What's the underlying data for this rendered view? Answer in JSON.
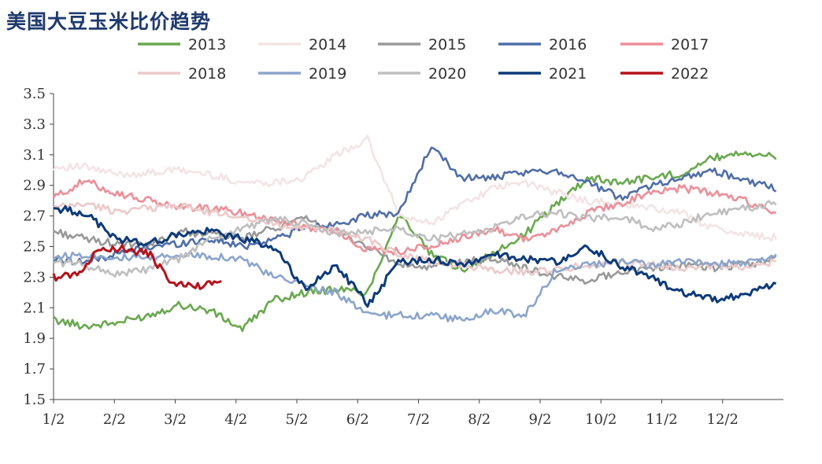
{
  "chart_data": {
    "type": "line",
    "title": "美国大豆玉米比价趋势",
    "xlabel": "",
    "ylabel": "",
    "ylim": [
      1.5,
      3.5
    ],
    "yticks": [
      "1.5",
      "1.7",
      "1.9",
      "2.1",
      "2.3",
      "2.5",
      "2.7",
      "2.9",
      "3.1",
      "3.3",
      "3.5"
    ],
    "x_ticks": [
      "1/2",
      "2/2",
      "3/2",
      "4/2",
      "5/2",
      "6/2",
      "7/2",
      "8/2",
      "9/2",
      "10/2",
      "11/2",
      "12/2"
    ],
    "grid": false,
    "legend_position": "top",
    "series": [
      {
        "name": "2013",
        "color": "#6aa84f",
        "values": [
          2.02,
          1.98,
          2.0,
          2.05,
          2.12,
          2.08,
          1.96,
          2.15,
          2.2,
          2.22,
          2.2,
          2.72,
          2.45,
          2.35,
          2.45,
          2.58,
          2.78,
          2.95,
          2.92,
          2.95,
          2.98,
          3.08,
          3.12,
          3.08
        ]
      },
      {
        "name": "2014",
        "color": "#f4e4e4",
        "values": [
          3.02,
          3.02,
          2.97,
          2.98,
          3.0,
          2.97,
          2.92,
          2.92,
          2.95,
          3.1,
          3.2,
          2.7,
          2.65,
          2.78,
          2.88,
          2.92,
          2.85,
          2.8,
          2.78,
          2.75,
          2.72,
          2.62,
          2.58,
          2.56
        ]
      },
      {
        "name": "2015",
        "color": "#999999",
        "values": [
          2.6,
          2.55,
          2.52,
          2.5,
          2.6,
          2.58,
          2.55,
          2.62,
          2.68,
          2.6,
          2.5,
          2.38,
          2.36,
          2.4,
          2.42,
          2.36,
          2.3,
          2.28,
          2.33,
          2.36,
          2.38,
          2.36,
          2.38,
          2.42
        ]
      },
      {
        "name": "2016",
        "color": "#4f6ea9",
        "values": [
          2.42,
          2.4,
          2.45,
          2.5,
          2.52,
          2.55,
          2.5,
          2.55,
          2.62,
          2.65,
          2.7,
          2.72,
          3.15,
          2.95,
          2.95,
          2.98,
          3.0,
          2.92,
          2.82,
          2.9,
          2.95,
          3.0,
          2.93,
          2.88
        ]
      },
      {
        "name": "2017",
        "color": "#ec8f98",
        "values": [
          2.82,
          2.93,
          2.85,
          2.8,
          2.76,
          2.75,
          2.72,
          2.68,
          2.63,
          2.6,
          2.48,
          2.47,
          2.5,
          2.55,
          2.62,
          2.55,
          2.6,
          2.72,
          2.78,
          2.85,
          2.88,
          2.85,
          2.8,
          2.73
        ]
      },
      {
        "name": "2018",
        "color": "#eccaca",
        "values": [
          2.75,
          2.78,
          2.73,
          2.75,
          2.77,
          2.72,
          2.7,
          2.65,
          2.62,
          2.6,
          2.55,
          2.45,
          2.4,
          2.38,
          2.35,
          2.33,
          2.35,
          2.38,
          2.4,
          2.38,
          2.36,
          2.38,
          2.37,
          2.4
        ]
      },
      {
        "name": "2019",
        "color": "#8ba5cc",
        "values": [
          2.43,
          2.45,
          2.43,
          2.42,
          2.45,
          2.44,
          2.42,
          2.3,
          2.25,
          2.2,
          2.05,
          2.05,
          2.05,
          2.02,
          2.08,
          2.05,
          2.35,
          2.38,
          2.4,
          2.38,
          2.4,
          2.38,
          2.4,
          2.43
        ]
      },
      {
        "name": "2020",
        "color": "#bfbfbf",
        "values": [
          2.4,
          2.38,
          2.32,
          2.35,
          2.42,
          2.55,
          2.62,
          2.68,
          2.65,
          2.58,
          2.6,
          2.62,
          2.55,
          2.58,
          2.62,
          2.7,
          2.72,
          2.68,
          2.7,
          2.62,
          2.65,
          2.72,
          2.75,
          2.78
        ]
      },
      {
        "name": "2021",
        "color": "#0d3a7a",
        "values": [
          2.75,
          2.72,
          2.55,
          2.52,
          2.58,
          2.6,
          2.55,
          2.5,
          2.22,
          2.38,
          2.12,
          2.4,
          2.42,
          2.38,
          2.45,
          2.42,
          2.4,
          2.5,
          2.38,
          2.3,
          2.2,
          2.15,
          2.18,
          2.25
        ]
      },
      {
        "name": "2022",
        "color": "#b5121b",
        "values": [
          2.3,
          2.32,
          2.5,
          2.48,
          2.45,
          2.25,
          2.24,
          2.28
        ]
      }
    ],
    "series_x_end": [
      0.99,
      0.99,
      0.99,
      0.99,
      0.99,
      0.99,
      0.99,
      0.99,
      0.99,
      0.23
    ]
  }
}
